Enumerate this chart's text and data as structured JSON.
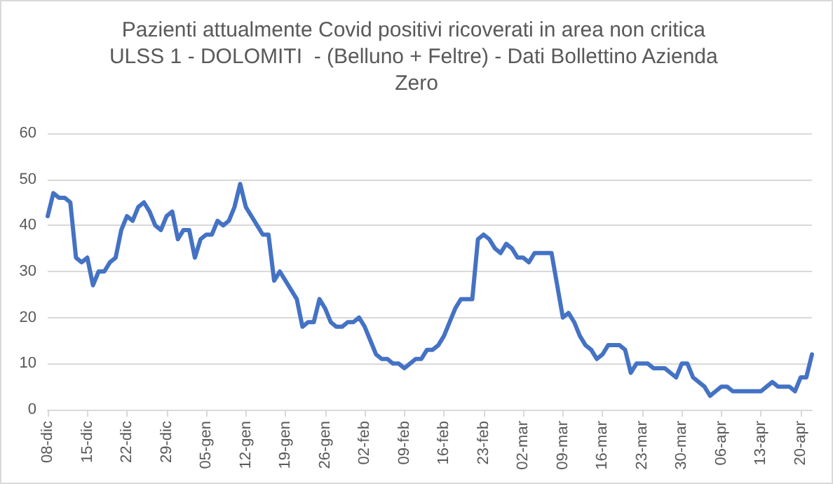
{
  "chart_data": {
    "type": "line",
    "title": "Pazienti attualmente Covid positivi ricoverati in area non critica ULSS 1 - DOLOMITI  - (Belluno + Feltre) - Dati Bollettino Azienda Zero",
    "categories": [
      "08-dic",
      null,
      null,
      null,
      null,
      null,
      null,
      "15-dic",
      null,
      null,
      null,
      null,
      null,
      null,
      "22-dic",
      null,
      null,
      null,
      null,
      null,
      null,
      "29-dic",
      null,
      null,
      null,
      null,
      null,
      null,
      "05-gen",
      null,
      null,
      null,
      null,
      null,
      null,
      "12-gen",
      null,
      null,
      null,
      null,
      null,
      null,
      "19-gen",
      null,
      null,
      null,
      null,
      null,
      null,
      "26-gen",
      null,
      null,
      null,
      null,
      null,
      null,
      "02-feb",
      null,
      null,
      null,
      null,
      null,
      null,
      "09-feb",
      null,
      null,
      null,
      null,
      null,
      null,
      "16-feb",
      null,
      null,
      null,
      null,
      null,
      null,
      "23-feb",
      null,
      null,
      null,
      null,
      null,
      null,
      "02-mar",
      null,
      null,
      null,
      null,
      null,
      null,
      "09-mar",
      null,
      null,
      null,
      null,
      null,
      null,
      "16-mar",
      null,
      null,
      null,
      null,
      null,
      null,
      "23-mar",
      null,
      null,
      null,
      null,
      null,
      null,
      "30-mar",
      null,
      null,
      null,
      null,
      null,
      null,
      "06-apr",
      null,
      null,
      null,
      null,
      null,
      null,
      "13-apr",
      null,
      null,
      null,
      null,
      null,
      null,
      "20-apr",
      null,
      null
    ],
    "series": [
      {
        "color": "#4472c4",
        "values": [
          42,
          47,
          46,
          46,
          45,
          33,
          32,
          33,
          27,
          30,
          30,
          32,
          33,
          39,
          42,
          41,
          44,
          45,
          43,
          40,
          39,
          42,
          43,
          37,
          39,
          39,
          33,
          37,
          38,
          38,
          41,
          40,
          41,
          44,
          49,
          44,
          42,
          40,
          38,
          38,
          28,
          30,
          28,
          26,
          24,
          18,
          19,
          19,
          24,
          22,
          19,
          18,
          18,
          19,
          19,
          20,
          18,
          15,
          12,
          11,
          11,
          10,
          10,
          9,
          10,
          11,
          11,
          13,
          13,
          14,
          16,
          19,
          22,
          24,
          24,
          24,
          37,
          38,
          37,
          35,
          34,
          36,
          35,
          33,
          33,
          32,
          34,
          34,
          34,
          34,
          27,
          20,
          21,
          19,
          16,
          14,
          13,
          11,
          12,
          14,
          14,
          14,
          13,
          8,
          10,
          10,
          10,
          9,
          9,
          9,
          8,
          7,
          10,
          10,
          7,
          6,
          5,
          3,
          4,
          5,
          5,
          4,
          4,
          4,
          4,
          4,
          4,
          5,
          6,
          5,
          5,
          5,
          4,
          7,
          7,
          12
        ]
      }
    ],
    "ylim": [
      0,
      60
    ],
    "yticks": [
      0,
      10,
      20,
      30,
      40,
      50,
      60
    ],
    "grid": "y",
    "marker": "none",
    "line_style": "solid"
  }
}
